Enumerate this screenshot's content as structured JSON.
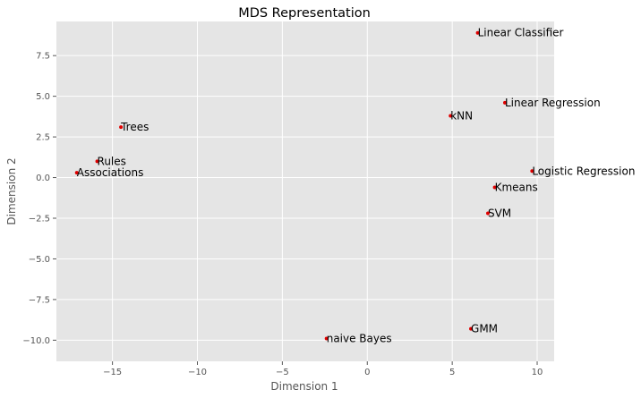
{
  "chart_data": {
    "type": "scatter",
    "title": "MDS Representation",
    "xlabel": "Dimension 1",
    "ylabel": "Dimension 2",
    "xlim": [
      -18.3,
      11.0
    ],
    "ylim": [
      -11.3,
      9.6
    ],
    "xticks": [
      -15,
      -10,
      -5,
      0,
      5,
      10
    ],
    "xtick_labels": [
      "−15",
      "−10",
      "−5",
      "0",
      "5",
      "10"
    ],
    "yticks": [
      -10.0,
      -7.5,
      -5.0,
      -2.5,
      0.0,
      2.5,
      5.0,
      7.5
    ],
    "ytick_labels": [
      "−10.0",
      "−7.5",
      "−5.0",
      "−2.5",
      "0.0",
      "2.5",
      "5.0",
      "7.5"
    ],
    "grid": true,
    "style": "ggplot",
    "colors": {
      "background": "#e5e5e5",
      "grid": "#ffffff",
      "point": "#e00000"
    },
    "points": [
      {
        "label": "Linear Classifier",
        "x": 6.5,
        "y": 8.9
      },
      {
        "label": "Linear Regression",
        "x": 8.1,
        "y": 4.6
      },
      {
        "label": "kNN",
        "x": 4.9,
        "y": 3.8
      },
      {
        "label": "Trees",
        "x": -14.5,
        "y": 3.1
      },
      {
        "label": "Rules",
        "x": -15.9,
        "y": 1.0
      },
      {
        "label": "Associations",
        "x": -17.1,
        "y": 0.3
      },
      {
        "label": "Logistic Regression",
        "x": 9.7,
        "y": 0.4
      },
      {
        "label": "Kmeans",
        "x": 7.5,
        "y": -0.6
      },
      {
        "label": "SVM",
        "x": 7.1,
        "y": -2.2
      },
      {
        "label": "GMM",
        "x": 6.1,
        "y": -9.3
      },
      {
        "label": "naive Bayes",
        "x": -2.4,
        "y": -9.9
      }
    ]
  }
}
